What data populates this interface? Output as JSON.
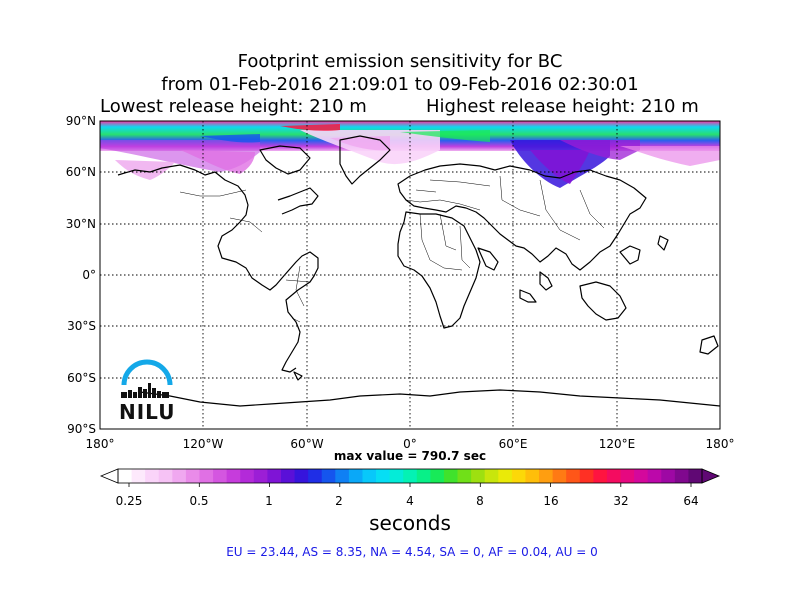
{
  "title": {
    "line1": "Footprint emission sensitivity for BC",
    "line2": "from 01-Feb-2016 21:09:01 to 09-Feb-2016 02:30:01",
    "line3_left": "Lowest release height: 210 m",
    "line3_right": "Highest release height: 210 m"
  },
  "map": {
    "lat_labels": [
      "90°N",
      "60°N",
      "30°N",
      "0°",
      "30°S",
      "60°S",
      "90°S"
    ],
    "lon_labels": [
      "180°",
      "120°W",
      "60°W",
      "0°",
      "60°E",
      "120°E",
      "180°"
    ],
    "max_value": "max value = 790.7 sec",
    "grid_lines": "dotted"
  },
  "colorbar": {
    "ticks": [
      "0.25",
      "0.5",
      "1",
      "2",
      "4",
      "8",
      "16",
      "32",
      "64"
    ],
    "unit": "seconds",
    "colors": [
      "#ffffff",
      "#fde9fc",
      "#fad4f9",
      "#f6c2f5",
      "#f0a8f0",
      "#e98be9",
      "#e070e4",
      "#d456e0",
      "#c63cdc",
      "#b32ad9",
      "#9c1ed6",
      "#7f14d6",
      "#5a10d8",
      "#3614dc",
      "#1f2ee6",
      "#1555ee",
      "#0f80f4",
      "#0aa8f8",
      "#08c8fa",
      "#06def4",
      "#04ecd8",
      "#04f2b4",
      "#08f088",
      "#18ea58",
      "#40e22c",
      "#70e018",
      "#9ee010",
      "#c8e60c",
      "#eaea08",
      "#fcd808",
      "#ffbe0a",
      "#ff9e10",
      "#ff7a14",
      "#ff5618",
      "#ff3024",
      "#ff1440",
      "#f40c60",
      "#e60880",
      "#d4089c",
      "#bc08aa",
      "#9e08a4",
      "#80088e",
      "#600874"
    ]
  },
  "stats": "EU = 23.44,  AS = 8.35,  NA = 4.54,  SA = 0,  AF = 0.04,  AU = 0",
  "logo": {
    "text": "NILU"
  }
}
